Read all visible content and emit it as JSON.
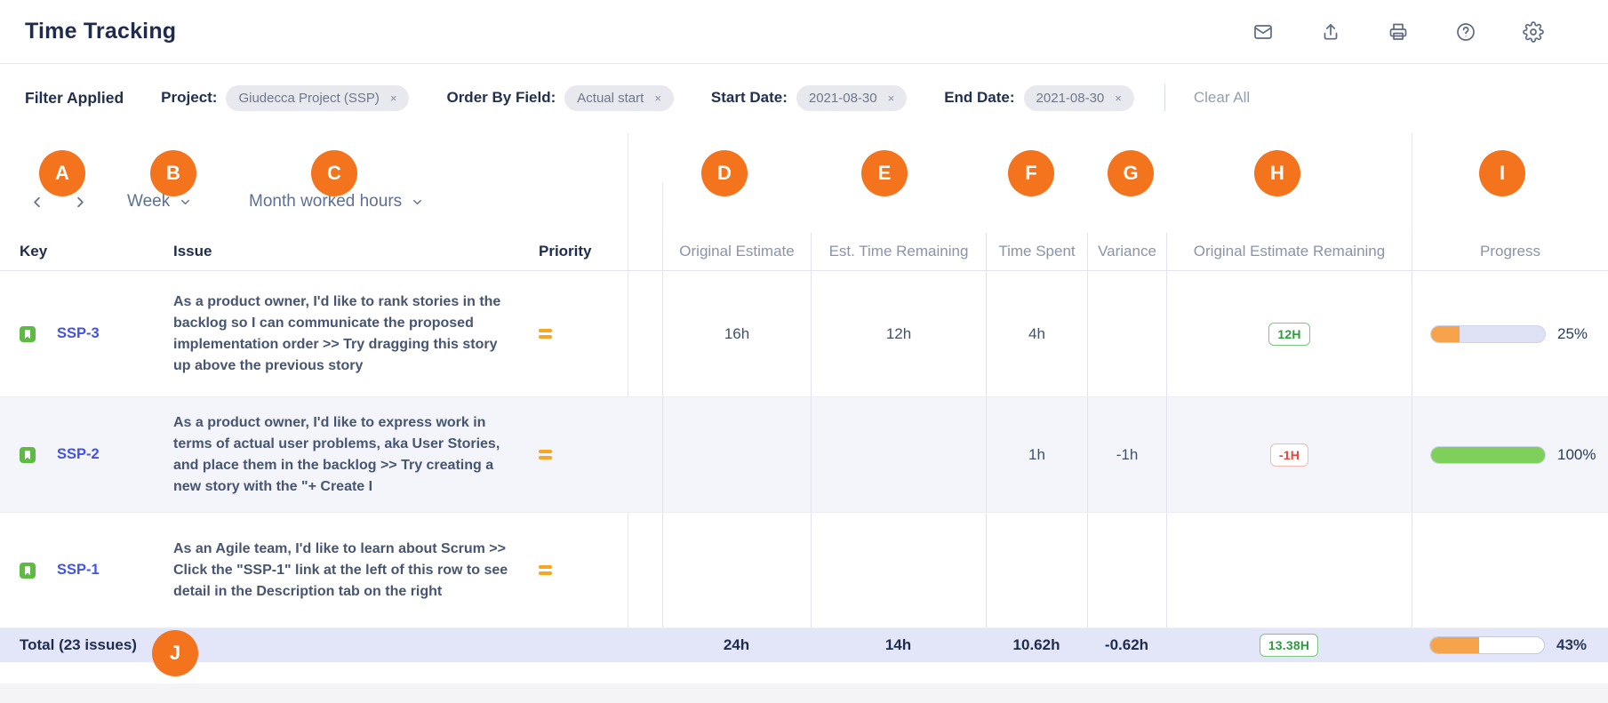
{
  "header": {
    "title": "Time Tracking",
    "icons": [
      "mail",
      "export",
      "print",
      "help",
      "settings"
    ]
  },
  "filter_bar": {
    "applied_label": "Filter Applied",
    "filters": [
      {
        "label": "Project:",
        "value": "Giudecca Project (SSP)",
        "remove": "×"
      },
      {
        "label": "Order By Field:",
        "value": "Actual start",
        "remove": "×"
      },
      {
        "label": "Start Date:",
        "value": "2021-08-30",
        "remove": "×"
      },
      {
        "label": "End Date:",
        "value": "2021-08-30",
        "remove": "×"
      }
    ],
    "clear_all_label": "Clear All"
  },
  "toolbar": {
    "period_selector": "Week",
    "view_selector": "Month worked hours"
  },
  "markers": {
    "a": "A",
    "b": "B",
    "c": "C",
    "d": "D",
    "e": "E",
    "f": "F",
    "g": "G",
    "h": "H",
    "i": "I",
    "j": "J"
  },
  "table": {
    "columns": {
      "key": "Key",
      "issue": "Issue",
      "priority": "Priority",
      "original_estimate": "Original Estimate",
      "est_time_remaining": "Est. Time Remaining",
      "time_spent": "Time Spent",
      "variance": "Variance",
      "original_estimate_remaining": "Original Estimate Remaining",
      "progress": "Progress"
    },
    "rows": [
      {
        "key": "SSP-3",
        "issue_type": "story",
        "issue": "As a product owner, I'd like to rank stories in the backlog so I can communicate the proposed implementation order >> Try dragging this story up above the previous story",
        "priority": "medium",
        "original_estimate": "16h",
        "est_time_remaining": "12h",
        "time_spent": "4h",
        "variance": "",
        "remaining_badge": {
          "text": "12H",
          "variant": "green"
        },
        "progress": {
          "value": 25,
          "label": "25%",
          "color": "orange"
        }
      },
      {
        "key": "SSP-2",
        "issue_type": "story",
        "issue": "As a product owner, I'd like to express work in terms of actual user problems, aka User Stories, and place them in the backlog >> Try creating a new story with the \"+ Create I",
        "priority": "medium",
        "original_estimate": "",
        "est_time_remaining": "",
        "time_spent": "1h",
        "variance": "-1h",
        "remaining_badge": {
          "text": "-1H",
          "variant": "red"
        },
        "progress": {
          "value": 100,
          "label": "100%",
          "color": "green"
        }
      },
      {
        "key": "SSP-1",
        "issue_type": "story",
        "issue": "As an Agile team, I'd like to learn about Scrum >> Click the \"SSP-1\" link at the left of this row to see detail in the Description tab on the right",
        "priority": "medium",
        "original_estimate": "",
        "est_time_remaining": "",
        "time_spent": "",
        "variance": ""
      }
    ],
    "total": {
      "label": "Total (23 issues)",
      "original_estimate": "24h",
      "est_time_remaining": "14h",
      "time_spent": "10.62h",
      "variance": "-0.62h",
      "remaining_badge": {
        "text": "13.38H",
        "variant": "green"
      },
      "progress": {
        "value": 43,
        "label": "43%",
        "color": "orange"
      }
    }
  },
  "colors": {
    "marker_orange": "#F4731D",
    "link_blue": "#4353E2",
    "story_green": "#5EBA44",
    "priority_orange": "#F6A623",
    "badge_green": "#31993F",
    "badge_red": "#E4473C",
    "progress_orange": "#F7A34C",
    "progress_green": "#7ED05A",
    "alt_row_bg": "#F4F5FB",
    "total_row_bg": "#E2E6F8"
  }
}
